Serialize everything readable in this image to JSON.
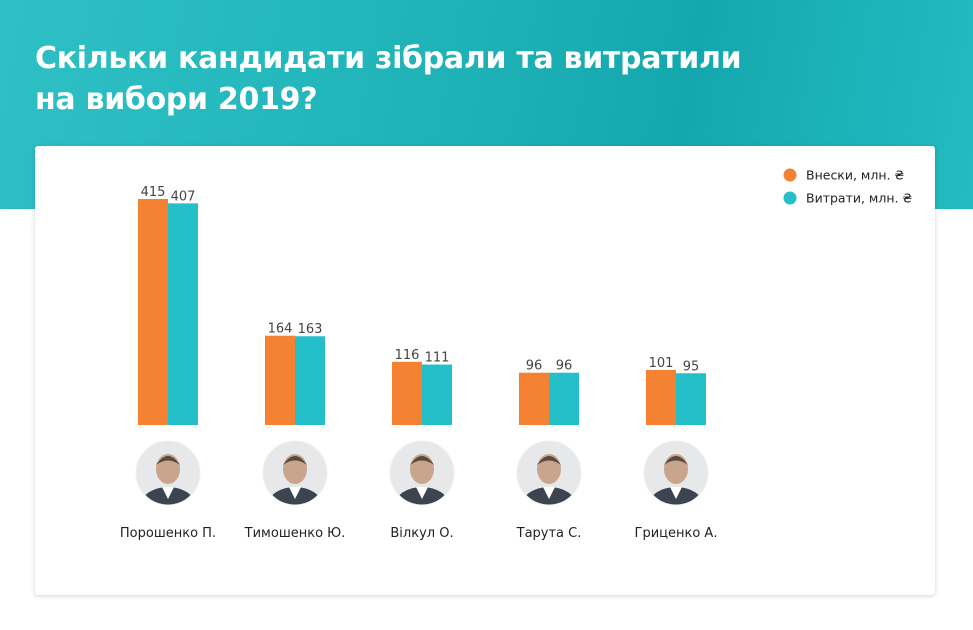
{
  "header": {
    "title_line1": "Скільки кандидати зібрали та витратили",
    "title_line2": "на вибори 2019?"
  },
  "colors": {
    "header_bg": "#1fb3b8",
    "series_contributions": "#f58233",
    "series_expenses": "#25bfca"
  },
  "chart_data": {
    "type": "bar",
    "categories": [
      "Порошенко П.",
      "Тимошенко Ю.",
      "Вілкул О.",
      "Тарута С.",
      "Гриценко А."
    ],
    "series": [
      {
        "name": "Внески, млн. ₴",
        "values": [
          415,
          164,
          116,
          96,
          101
        ],
        "color": "#f58233"
      },
      {
        "name": "Витрати, млн. ₴",
        "values": [
          407,
          163,
          111,
          96,
          95
        ],
        "color": "#25bfca"
      }
    ],
    "data_labels": true,
    "legend_position": "top-right",
    "grid": false,
    "ylim": [
      0,
      415
    ],
    "category_icons": [
      "portrait-poroshenko-icon",
      "portrait-tymoshenko-icon",
      "portrait-vilkul-icon",
      "portrait-taruta-icon",
      "portrait-hrytsenko-icon"
    ]
  }
}
